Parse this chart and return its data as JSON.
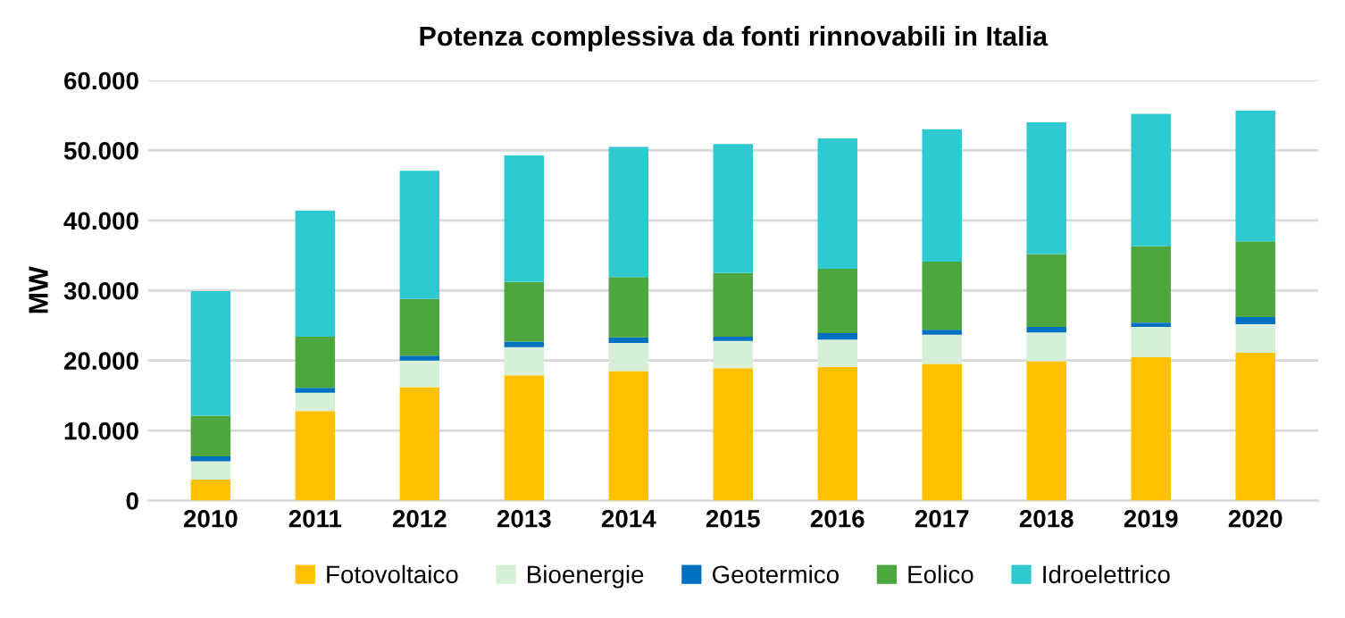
{
  "chart_data": {
    "type": "bar",
    "stacked": true,
    "title": "Potenza complessiva da fonti rinnovabili in Italia",
    "ylabel": "MW",
    "categories": [
      "2010",
      "2011",
      "2012",
      "2013",
      "2014",
      "2015",
      "2016",
      "2017",
      "2018",
      "2019",
      "2020"
    ],
    "series": [
      {
        "name": "Fotovoltaico",
        "color": "#ffc000",
        "values": [
          3000,
          12800,
          16200,
          17900,
          18500,
          18900,
          19100,
          19500,
          19900,
          20500,
          21100
        ]
      },
      {
        "name": "Bioenergie",
        "color": "#d6f0d8",
        "values": [
          2600,
          2600,
          3800,
          4000,
          4000,
          3900,
          3900,
          4200,
          4100,
          4300,
          4100
        ]
      },
      {
        "name": "Geotermico",
        "color": "#0070c0",
        "values": [
          700,
          700,
          700,
          800,
          800,
          600,
          900,
          700,
          800,
          600,
          1000
        ]
      },
      {
        "name": "Eolico",
        "color": "#4ea63e",
        "values": [
          5800,
          7300,
          8100,
          8500,
          8600,
          9100,
          9200,
          9700,
          10400,
          10900,
          10800
        ]
      },
      {
        "name": "Idroelettrico",
        "color": "#2ecacf",
        "values": [
          17800,
          18000,
          18300,
          18100,
          18600,
          18400,
          18600,
          18900,
          18800,
          18900,
          18700
        ]
      }
    ],
    "ylim": [
      0,
      60000
    ],
    "yticks": [
      {
        "value": 0,
        "label": "0"
      },
      {
        "value": 10000,
        "label": "10.000"
      },
      {
        "value": 20000,
        "label": "20.000"
      },
      {
        "value": 30000,
        "label": "30.000"
      },
      {
        "value": 40000,
        "label": "40.000"
      },
      {
        "value": 50000,
        "label": "50.000"
      },
      {
        "value": 60000,
        "label": "60.000"
      }
    ],
    "grid": "y",
    "legend": "bottom"
  }
}
